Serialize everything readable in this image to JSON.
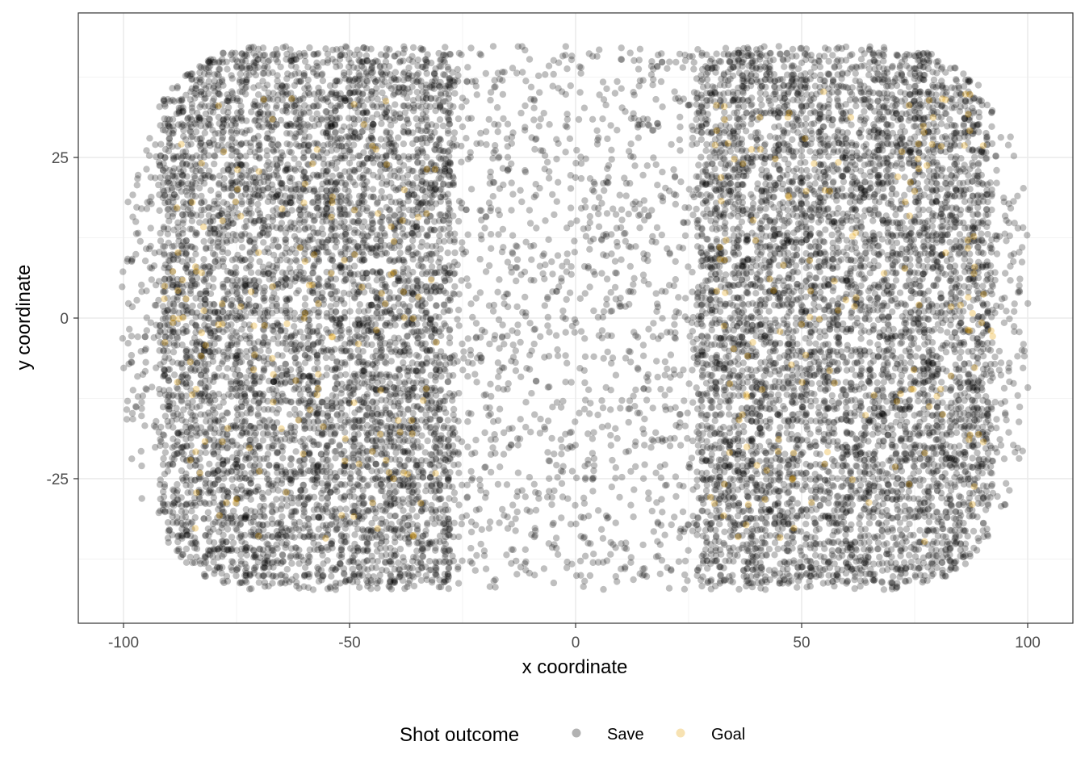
{
  "chart_data": {
    "type": "scatter",
    "title": "",
    "xlabel": "x coordinate",
    "ylabel": "y coordinate",
    "xlim": [
      -110,
      110
    ],
    "ylim": [
      -47.5,
      47.5
    ],
    "xticks": [
      -100,
      -50,
      0,
      50,
      100
    ],
    "yticks": [
      -25,
      0,
      25
    ],
    "grid": true,
    "legend": {
      "title": "Shot outcome",
      "placement": "bottom"
    },
    "series": [
      {
        "name": "Save",
        "color": "#000000",
        "opacity": 0.25,
        "regions": [
          {
            "x_range": [
              -92,
              -27
            ],
            "y_range": [
              -42,
              42
            ],
            "density": "very high"
          },
          {
            "x_range": [
              -27,
              27
            ],
            "y_range": [
              -42,
              42
            ],
            "density": "medium"
          },
          {
            "x_range": [
              27,
              92
            ],
            "y_range": [
              -42,
              42
            ],
            "density": "very high"
          },
          {
            "x_range": [
              -100,
              -92
            ],
            "y_range": [
              -30,
              30
            ],
            "density": "medium"
          },
          {
            "x_range": [
              92,
              100
            ],
            "y_range": [
              -30,
              30
            ],
            "density": "medium"
          }
        ]
      },
      {
        "name": "Goal",
        "color": "#E69F00",
        "opacity": 0.3,
        "regions": [
          {
            "x_range": [
              -90,
              -30
            ],
            "y_range": [
              -35,
              35
            ],
            "density": "medium"
          },
          {
            "x_range": [
              30,
              90
            ],
            "y_range": [
              -35,
              35
            ],
            "density": "medium"
          },
          {
            "x_range": [
              -92,
              -86
            ],
            "y_range": [
              -6,
              6
            ],
            "density": "high"
          },
          {
            "x_range": [
              86,
              92
            ],
            "y_range": [
              -6,
              6
            ],
            "density": "high"
          }
        ]
      }
    ]
  }
}
